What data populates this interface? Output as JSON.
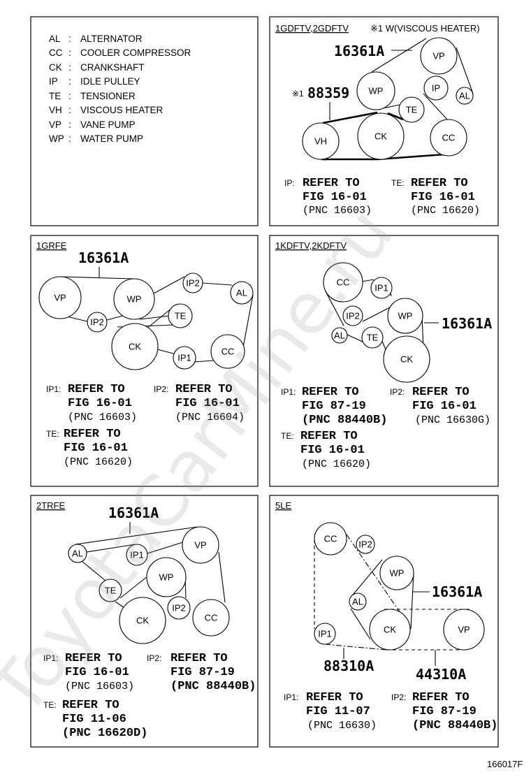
{
  "legend": [
    {
      "code": "AL",
      "name": "ALTERNATOR"
    },
    {
      "code": "CC",
      "name": "COOLER COMPRESSOR"
    },
    {
      "code": "CK",
      "name": "CRANKSHAFT"
    },
    {
      "code": "IP",
      "name": "IDLE PULLEY"
    },
    {
      "code": "TE",
      "name": "TENSIONER"
    },
    {
      "code": "VH",
      "name": "VISCOUS HEATER"
    },
    {
      "code": "VP",
      "name": "VANE PUMP"
    },
    {
      "code": "WP",
      "name": "WATER PUMP"
    }
  ],
  "legend_sep": ":",
  "panels": [
    {
      "title": "1GDFTV,2GDFTV",
      "note": "※1 W(VISCOUS HEATER)",
      "parts": [
        "16361A",
        "88359"
      ],
      "mark": "※1",
      "pulleys": [
        "VP",
        "IP",
        "AL",
        "WP",
        "TE",
        "VH",
        "CK",
        "CC"
      ],
      "refs": [
        {
          "key": "IP:",
          "l1": "REFER TO",
          "l2": "FIG 16-01",
          "l3": "(PNC 16603)"
        },
        {
          "key": "TE:",
          "l1": "REFER TO",
          "l2": "FIG 16-01",
          "l3": "(PNC 16620)"
        }
      ]
    },
    {
      "title": "1GRFE",
      "parts": [
        "16361A"
      ],
      "pulleys": [
        "VP",
        "WP",
        "IP2",
        "AL",
        "IP2",
        "TE",
        "CK",
        "IP1",
        "CC"
      ],
      "refs": [
        {
          "key": "IP1:",
          "l1": "REFER TO",
          "l2": "FIG 16-01",
          "l3": "(PNC 16603)"
        },
        {
          "key": "IP2:",
          "l1": "REFER TO",
          "l2": "FIG 16-01",
          "l3": "(PNC 16604)"
        },
        {
          "key": "TE:",
          "l1": "REFER TO",
          "l2": "FIG 16-01",
          "l3": "(PNC 16620)"
        }
      ]
    },
    {
      "title": "1KDFTV,2KDFTV",
      "parts": [
        "16361A"
      ],
      "pulleys": [
        "CC",
        "IP1",
        "IP2",
        "WP",
        "AL",
        "TE",
        "CK"
      ],
      "refs": [
        {
          "key": "IP1:",
          "l1": "REFER TO",
          "l2": "FIG 87-19",
          "l3": "(PNC 88440B)"
        },
        {
          "key": "IP2:",
          "l1": "REFER TO",
          "l2": "FIG 16-01",
          "l3": "(PNC 16630G)"
        },
        {
          "key": "TE:",
          "l1": "REFER TO",
          "l2": "FIG 16-01",
          "l3": "(PNC 16620)"
        }
      ]
    },
    {
      "title": "2TRFE",
      "parts": [
        "16361A"
      ],
      "pulleys": [
        "VP",
        "AL",
        "IP1",
        "WP",
        "TE",
        "IP2",
        "CK",
        "CC"
      ],
      "refs": [
        {
          "key": "IP1:",
          "l1": "REFER TO",
          "l2": "FIG 16-01",
          "l3": "(PNC 16603)"
        },
        {
          "key": "IP2:",
          "l1": "REFER TO",
          "l2": "FIG 87-19",
          "l3": "(PNC 88440B)"
        },
        {
          "key": "TE:",
          "l1": "REFER TO",
          "l2": "FIG 11-06",
          "l3": "(PNC 16620D)"
        }
      ]
    },
    {
      "title": "5LE",
      "parts": [
        "16361A",
        "88310A",
        "44310A"
      ],
      "pulleys": [
        "CC",
        "IP2",
        "WP",
        "AL",
        "CK",
        "VP",
        "IP1"
      ],
      "refs": [
        {
          "key": "IP1:",
          "l1": "REFER TO",
          "l2": "FIG 11-07",
          "l3": "(PNC 16630)"
        },
        {
          "key": "IP2:",
          "l1": "REFER TO",
          "l2": "FIG 87-19",
          "l3": "(PNC 88440B)"
        }
      ]
    }
  ],
  "figure_id": "166017F",
  "watermark": "ToyotaCarMine.ru"
}
